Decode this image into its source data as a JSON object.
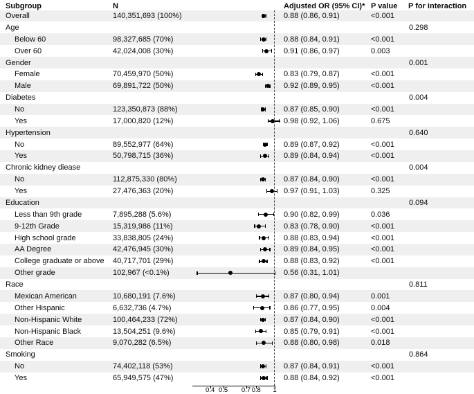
{
  "columns": {
    "subgroup": "Subgroup",
    "n": "N",
    "or": "Adjusted OR (95% CI)*",
    "p_value": "P value",
    "p_interaction": "P for interaction"
  },
  "chart_data": {
    "type": "scatter",
    "variant": "forest-plot",
    "xlabel": "",
    "x_scale": "sqrt",
    "x_ticks": [
      0.4,
      0.5,
      0.7,
      0.8,
      1
    ],
    "x_tick_labels": [
      "0.4",
      "0.5",
      "0.7",
      "0.8",
      "1"
    ],
    "reference_x": 1,
    "rows": [
      {
        "kind": "data",
        "label": "Overall",
        "indent": false,
        "n": "140,351,693 (100%)",
        "or": 0.88,
        "ci": [
          0.86,
          0.91
        ],
        "or_text": "0.88 (0.86, 0.91)",
        "p": "<0.001",
        "p_interaction": ""
      },
      {
        "kind": "group",
        "label": "Age",
        "p_interaction": "0.298"
      },
      {
        "kind": "data",
        "label": "Below 60",
        "indent": true,
        "n": "98,327,685 (70%)",
        "or": 0.88,
        "ci": [
          0.84,
          0.91
        ],
        "or_text": "0.88 (0.84, 0.91)",
        "p": "<0.001",
        "p_interaction": ""
      },
      {
        "kind": "data",
        "label": "Over 60",
        "indent": true,
        "n": "42,024,008 (30%)",
        "or": 0.91,
        "ci": [
          0.86,
          0.97
        ],
        "or_text": "0.91 (0.86, 0.97)",
        "p": "0.003",
        "p_interaction": ""
      },
      {
        "kind": "group",
        "label": "Gender",
        "p_interaction": "0.001"
      },
      {
        "kind": "data",
        "label": "Female",
        "indent": true,
        "n": "70,459,970 (50%)",
        "or": 0.83,
        "ci": [
          0.79,
          0.87
        ],
        "or_text": "0.83 (0.79, 0.87)",
        "p": "<0.001",
        "p_interaction": ""
      },
      {
        "kind": "data",
        "label": "Male",
        "indent": true,
        "n": "69,891,722 (50%)",
        "or": 0.92,
        "ci": [
          0.89,
          0.95
        ],
        "or_text": "0.92 (0.89, 0.95)",
        "p": "<0.001",
        "p_interaction": ""
      },
      {
        "kind": "group",
        "label": "Diabetes",
        "p_interaction": "0.004"
      },
      {
        "kind": "data",
        "label": "No",
        "indent": true,
        "n": "123,350,873 (88%)",
        "or": 0.87,
        "ci": [
          0.85,
          0.9
        ],
        "or_text": "0.87 (0.85, 0.90)",
        "p": "<0.001",
        "p_interaction": ""
      },
      {
        "kind": "data",
        "label": "Yes",
        "indent": true,
        "n": "17,000,820 (12%)",
        "or": 0.98,
        "ci": [
          0.92,
          1.06
        ],
        "or_text": "0.98 (0.92, 1.06)",
        "p": "0.675",
        "p_interaction": ""
      },
      {
        "kind": "group",
        "label": "Hypertension",
        "p_interaction": "0.640"
      },
      {
        "kind": "data",
        "label": "No",
        "indent": true,
        "n": "89,552,977 (64%)",
        "or": 0.89,
        "ci": [
          0.87,
          0.92
        ],
        "or_text": "0.89 (0.87, 0.92)",
        "p": "<0.001",
        "p_interaction": ""
      },
      {
        "kind": "data",
        "label": "Yes",
        "indent": true,
        "n": "50,798,715 (36%)",
        "or": 0.89,
        "ci": [
          0.84,
          0.94
        ],
        "or_text": "0.89 (0.84, 0.94)",
        "p": "<0.001",
        "p_interaction": ""
      },
      {
        "kind": "group",
        "label": "Chronic kidney diease",
        "p_interaction": "0.004"
      },
      {
        "kind": "data",
        "label": "No",
        "indent": true,
        "n": "112,875,330 (80%)",
        "or": 0.87,
        "ci": [
          0.84,
          0.9
        ],
        "or_text": "0.87 (0.84, 0.90)",
        "p": "<0.001",
        "p_interaction": ""
      },
      {
        "kind": "data",
        "label": "Yes",
        "indent": true,
        "n": "27,476,363 (20%)",
        "or": 0.97,
        "ci": [
          0.91,
          1.03
        ],
        "or_text": "0.97 (0.91, 1.03)",
        "p": "0.325",
        "p_interaction": ""
      },
      {
        "kind": "group",
        "label": "Education",
        "p_interaction": "0.094"
      },
      {
        "kind": "data",
        "label": "Less than 9th grade",
        "indent": true,
        "n": "7,895,288 (5.6%)",
        "or": 0.9,
        "ci": [
          0.82,
          0.99
        ],
        "or_text": "0.90 (0.82, 0.99)",
        "p": "0.036",
        "p_interaction": ""
      },
      {
        "kind": "data",
        "label": "9-12th Grade",
        "indent": true,
        "n": "15,319,986 (11%)",
        "or": 0.83,
        "ci": [
          0.78,
          0.9
        ],
        "or_text": "0.83 (0.78, 0.90)",
        "p": "<0.001",
        "p_interaction": ""
      },
      {
        "kind": "data",
        "label": "High school grade",
        "indent": true,
        "n": "33,838,805 (24%)",
        "or": 0.88,
        "ci": [
          0.83,
          0.94
        ],
        "or_text": "0.88 (0.83, 0.94)",
        "p": "<0.001",
        "p_interaction": ""
      },
      {
        "kind": "data",
        "label": "AA Degree",
        "indent": true,
        "n": "42,476,945 (30%)",
        "or": 0.89,
        "ci": [
          0.84,
          0.95
        ],
        "or_text": "0.89 (0.84, 0.95)",
        "p": "<0.001",
        "p_interaction": ""
      },
      {
        "kind": "data",
        "label": "College graduate or above",
        "indent": true,
        "n": "40,717,701 (29%)",
        "or": 0.88,
        "ci": [
          0.83,
          0.92
        ],
        "or_text": "0.88 (0.83, 0.92)",
        "p": "<0.001",
        "p_interaction": ""
      },
      {
        "kind": "data",
        "label": "Other grade",
        "indent": true,
        "n": "102,967 (<0.1%)",
        "or": 0.56,
        "ci": [
          0.31,
          1.01
        ],
        "or_text": "0.56 (0.31, 1.01)",
        "p": "",
        "p_interaction": ""
      },
      {
        "kind": "group",
        "label": "Race",
        "p_interaction": "0.811"
      },
      {
        "kind": "data",
        "label": "Mexican American",
        "indent": true,
        "n": "10,680,191 (7.6%)",
        "or": 0.87,
        "ci": [
          0.8,
          0.94
        ],
        "or_text": "0.87 (0.80, 0.94)",
        "p": "0.001",
        "p_interaction": ""
      },
      {
        "kind": "data",
        "label": "Other Hispanic",
        "indent": true,
        "n": "6,632,736 (4.7%)",
        "or": 0.86,
        "ci": [
          0.77,
          0.95
        ],
        "or_text": "0.86 (0.77, 0.95)",
        "p": "0.004",
        "p_interaction": ""
      },
      {
        "kind": "data",
        "label": "Non-Hispanic White",
        "indent": true,
        "n": "100,464,233 (72%)",
        "or": 0.87,
        "ci": [
          0.84,
          0.9
        ],
        "or_text": "0.87 (0.84, 0.90)",
        "p": "<0.001",
        "p_interaction": ""
      },
      {
        "kind": "data",
        "label": "Non-Hispanic Black",
        "indent": true,
        "n": "13,504,251 (9.6%)",
        "or": 0.85,
        "ci": [
          0.79,
          0.91
        ],
        "or_text": "0.85 (0.79, 0.91)",
        "p": "<0.001",
        "p_interaction": ""
      },
      {
        "kind": "data",
        "label": "Other Race",
        "indent": true,
        "n": "9,070,282 (6.5%)",
        "or": 0.88,
        "ci": [
          0.8,
          0.98
        ],
        "or_text": "0.88 (0.80, 0.98)",
        "p": "0.018",
        "p_interaction": ""
      },
      {
        "kind": "group",
        "label": "Smoking",
        "p_interaction": "0.864"
      },
      {
        "kind": "data",
        "label": "No",
        "indent": true,
        "n": "74,402,118 (53%)",
        "or": 0.87,
        "ci": [
          0.84,
          0.91
        ],
        "or_text": "0.87 (0.84, 0.91)",
        "p": "<0.001",
        "p_interaction": ""
      },
      {
        "kind": "data",
        "label": "Yes",
        "indent": true,
        "n": "65,949,575 (47%)",
        "or": 0.88,
        "ci": [
          0.84,
          0.92
        ],
        "or_text": "0.88 (0.84, 0.92)",
        "p": "<0.001",
        "p_interaction": ""
      }
    ],
    "stripe_color": "#efefef",
    "marker_color": "#000000"
  }
}
